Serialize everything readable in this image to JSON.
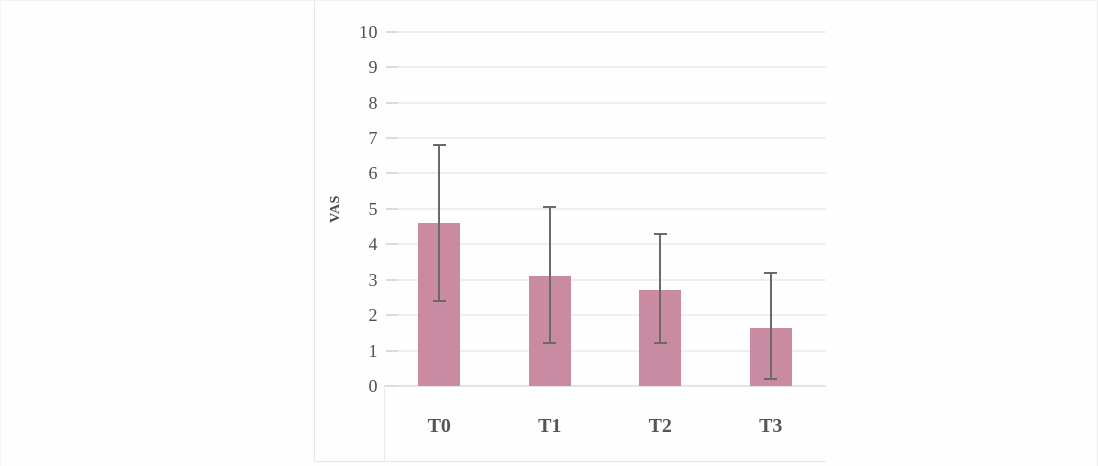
{
  "figure": {
    "ylabel": "VAS"
  },
  "chart_data": {
    "type": "bar",
    "title": "",
    "xlabel": "",
    "ylabel": "VAS",
    "categories": [
      "T0",
      "T1",
      "T2",
      "T3"
    ],
    "series": [
      {
        "name": "VAS",
        "values": [
          4.6,
          3.1,
          2.7,
          1.65
        ]
      }
    ],
    "error_bars": {
      "lower": [
        2.4,
        1.2,
        1.2,
        0.2
      ],
      "upper": [
        6.8,
        5.05,
        4.3,
        3.2
      ]
    },
    "ylim": [
      0,
      10
    ],
    "yticks": [
      0,
      1,
      2,
      3,
      4,
      5,
      6,
      7,
      8,
      9,
      10
    ],
    "grid": true,
    "legend": false,
    "bar_color": "#c98ba2",
    "error_color": "#6a6a6a",
    "tick_label_color": "#4f4f4f",
    "category_label_color": "#555555",
    "gridline_color": "#efefef"
  }
}
